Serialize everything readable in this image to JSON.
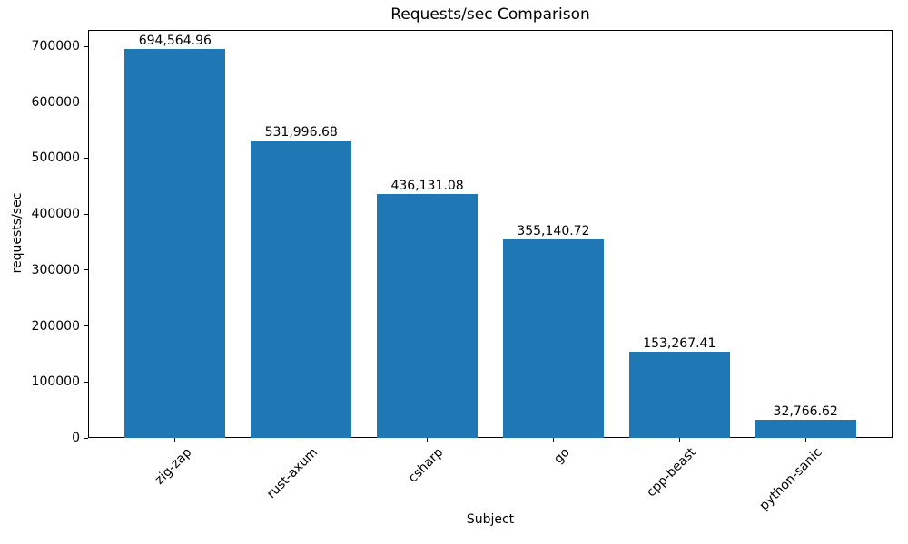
{
  "chart_data": {
    "type": "bar",
    "title": "Requests/sec Comparison",
    "xlabel": "Subject",
    "ylabel": "requests/sec",
    "categories": [
      "zig-zap",
      "rust-axum",
      "csharp",
      "go",
      "cpp-beast",
      "python-sanic"
    ],
    "values": [
      694564.96,
      531996.68,
      436131.08,
      355140.72,
      153267.41,
      32766.62
    ],
    "value_labels": [
      "694,564.96",
      "531,996.68",
      "436,131.08",
      "355,140.72",
      "153,267.41",
      "32,766.62"
    ],
    "y_ticks": [
      0,
      100000,
      200000,
      300000,
      400000,
      500000,
      600000,
      700000
    ],
    "y_tick_labels": [
      "0",
      "100000",
      "200000",
      "300000",
      "400000",
      "500000",
      "600000",
      "700000"
    ],
    "ylim": [
      0,
      729293.21
    ],
    "x_tick_rotation": 45,
    "grid": false,
    "legend": "none",
    "bar_color": "#1f77b4",
    "axis_color": "#000000",
    "text_color": "#000000",
    "background_color": "#ffffff"
  }
}
